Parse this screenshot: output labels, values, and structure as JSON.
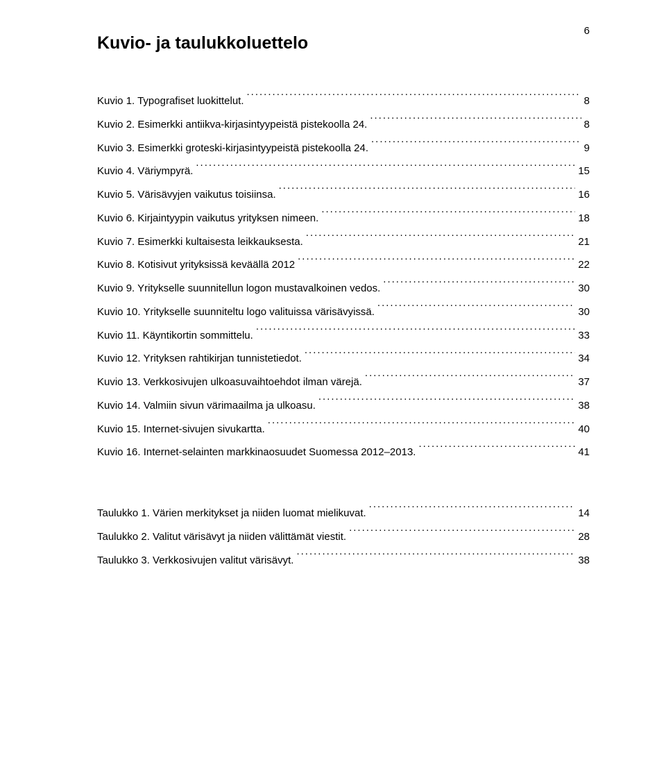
{
  "page_number": "6",
  "heading": "Kuvio- ja taulukkoluettelo",
  "figures": [
    {
      "label": "Kuvio 1. Typografiset luokittelut.",
      "page": "8"
    },
    {
      "label": "Kuvio 2. Esimerkki antiikva-kirjasintyypeistä pistekoolla 24.",
      "page": "8"
    },
    {
      "label": "Kuvio 3. Esimerkki groteski-kirjasintyypeistä pistekoolla 24.",
      "page": "9"
    },
    {
      "label": "Kuvio 4. Väriympyrä.",
      "page": "15"
    },
    {
      "label": "Kuvio 5. Värisävyjen vaikutus toisiinsa.",
      "page": "16"
    },
    {
      "label": "Kuvio 6. Kirjaintyypin vaikutus yrityksen nimeen.",
      "page": "18"
    },
    {
      "label": "Kuvio 7. Esimerkki kultaisesta leikkauksesta.",
      "page": "21"
    },
    {
      "label": "Kuvio 8. Kotisivut yrityksissä keväällä 2012",
      "page": "22"
    },
    {
      "label": "Kuvio 9. Yritykselle suunnitellun logon mustavalkoinen vedos.",
      "page": "30"
    },
    {
      "label": "Kuvio 10. Yritykselle suunniteltu logo valituissa värisävyissä.",
      "page": "30"
    },
    {
      "label": "Kuvio 11. Käyntikortin sommittelu.",
      "page": "33"
    },
    {
      "label": "Kuvio 12. Yrityksen rahtikirjan tunnistetiedot.",
      "page": "34"
    },
    {
      "label": "Kuvio 13. Verkkosivujen ulkoasuvaihtoehdot ilman värejä.",
      "page": "37"
    },
    {
      "label": "Kuvio 14. Valmiin sivun värimaailma ja ulkoasu.",
      "page": "38"
    },
    {
      "label": "Kuvio 15. Internet-sivujen sivukartta.",
      "page": "40"
    },
    {
      "label": "Kuvio 16. Internet-selainten markkinaosuudet Suomessa 2012–2013.",
      "page": "41"
    }
  ],
  "tables": [
    {
      "label": "Taulukko 1. Värien merkitykset ja niiden luomat mielikuvat.",
      "page": "14"
    },
    {
      "label": "Taulukko 2. Valitut värisävyt ja niiden välittämät viestit.",
      "page": "28"
    },
    {
      "label": "Taulukko 3. Verkkosivujen valitut värisävyt.",
      "page": "38"
    }
  ],
  "style": {
    "font_family": "Arial",
    "heading_fontsize_pt": 19,
    "body_fontsize_pt": 11,
    "text_color": "#000000",
    "background_color": "#ffffff",
    "line_height": 2.25
  }
}
